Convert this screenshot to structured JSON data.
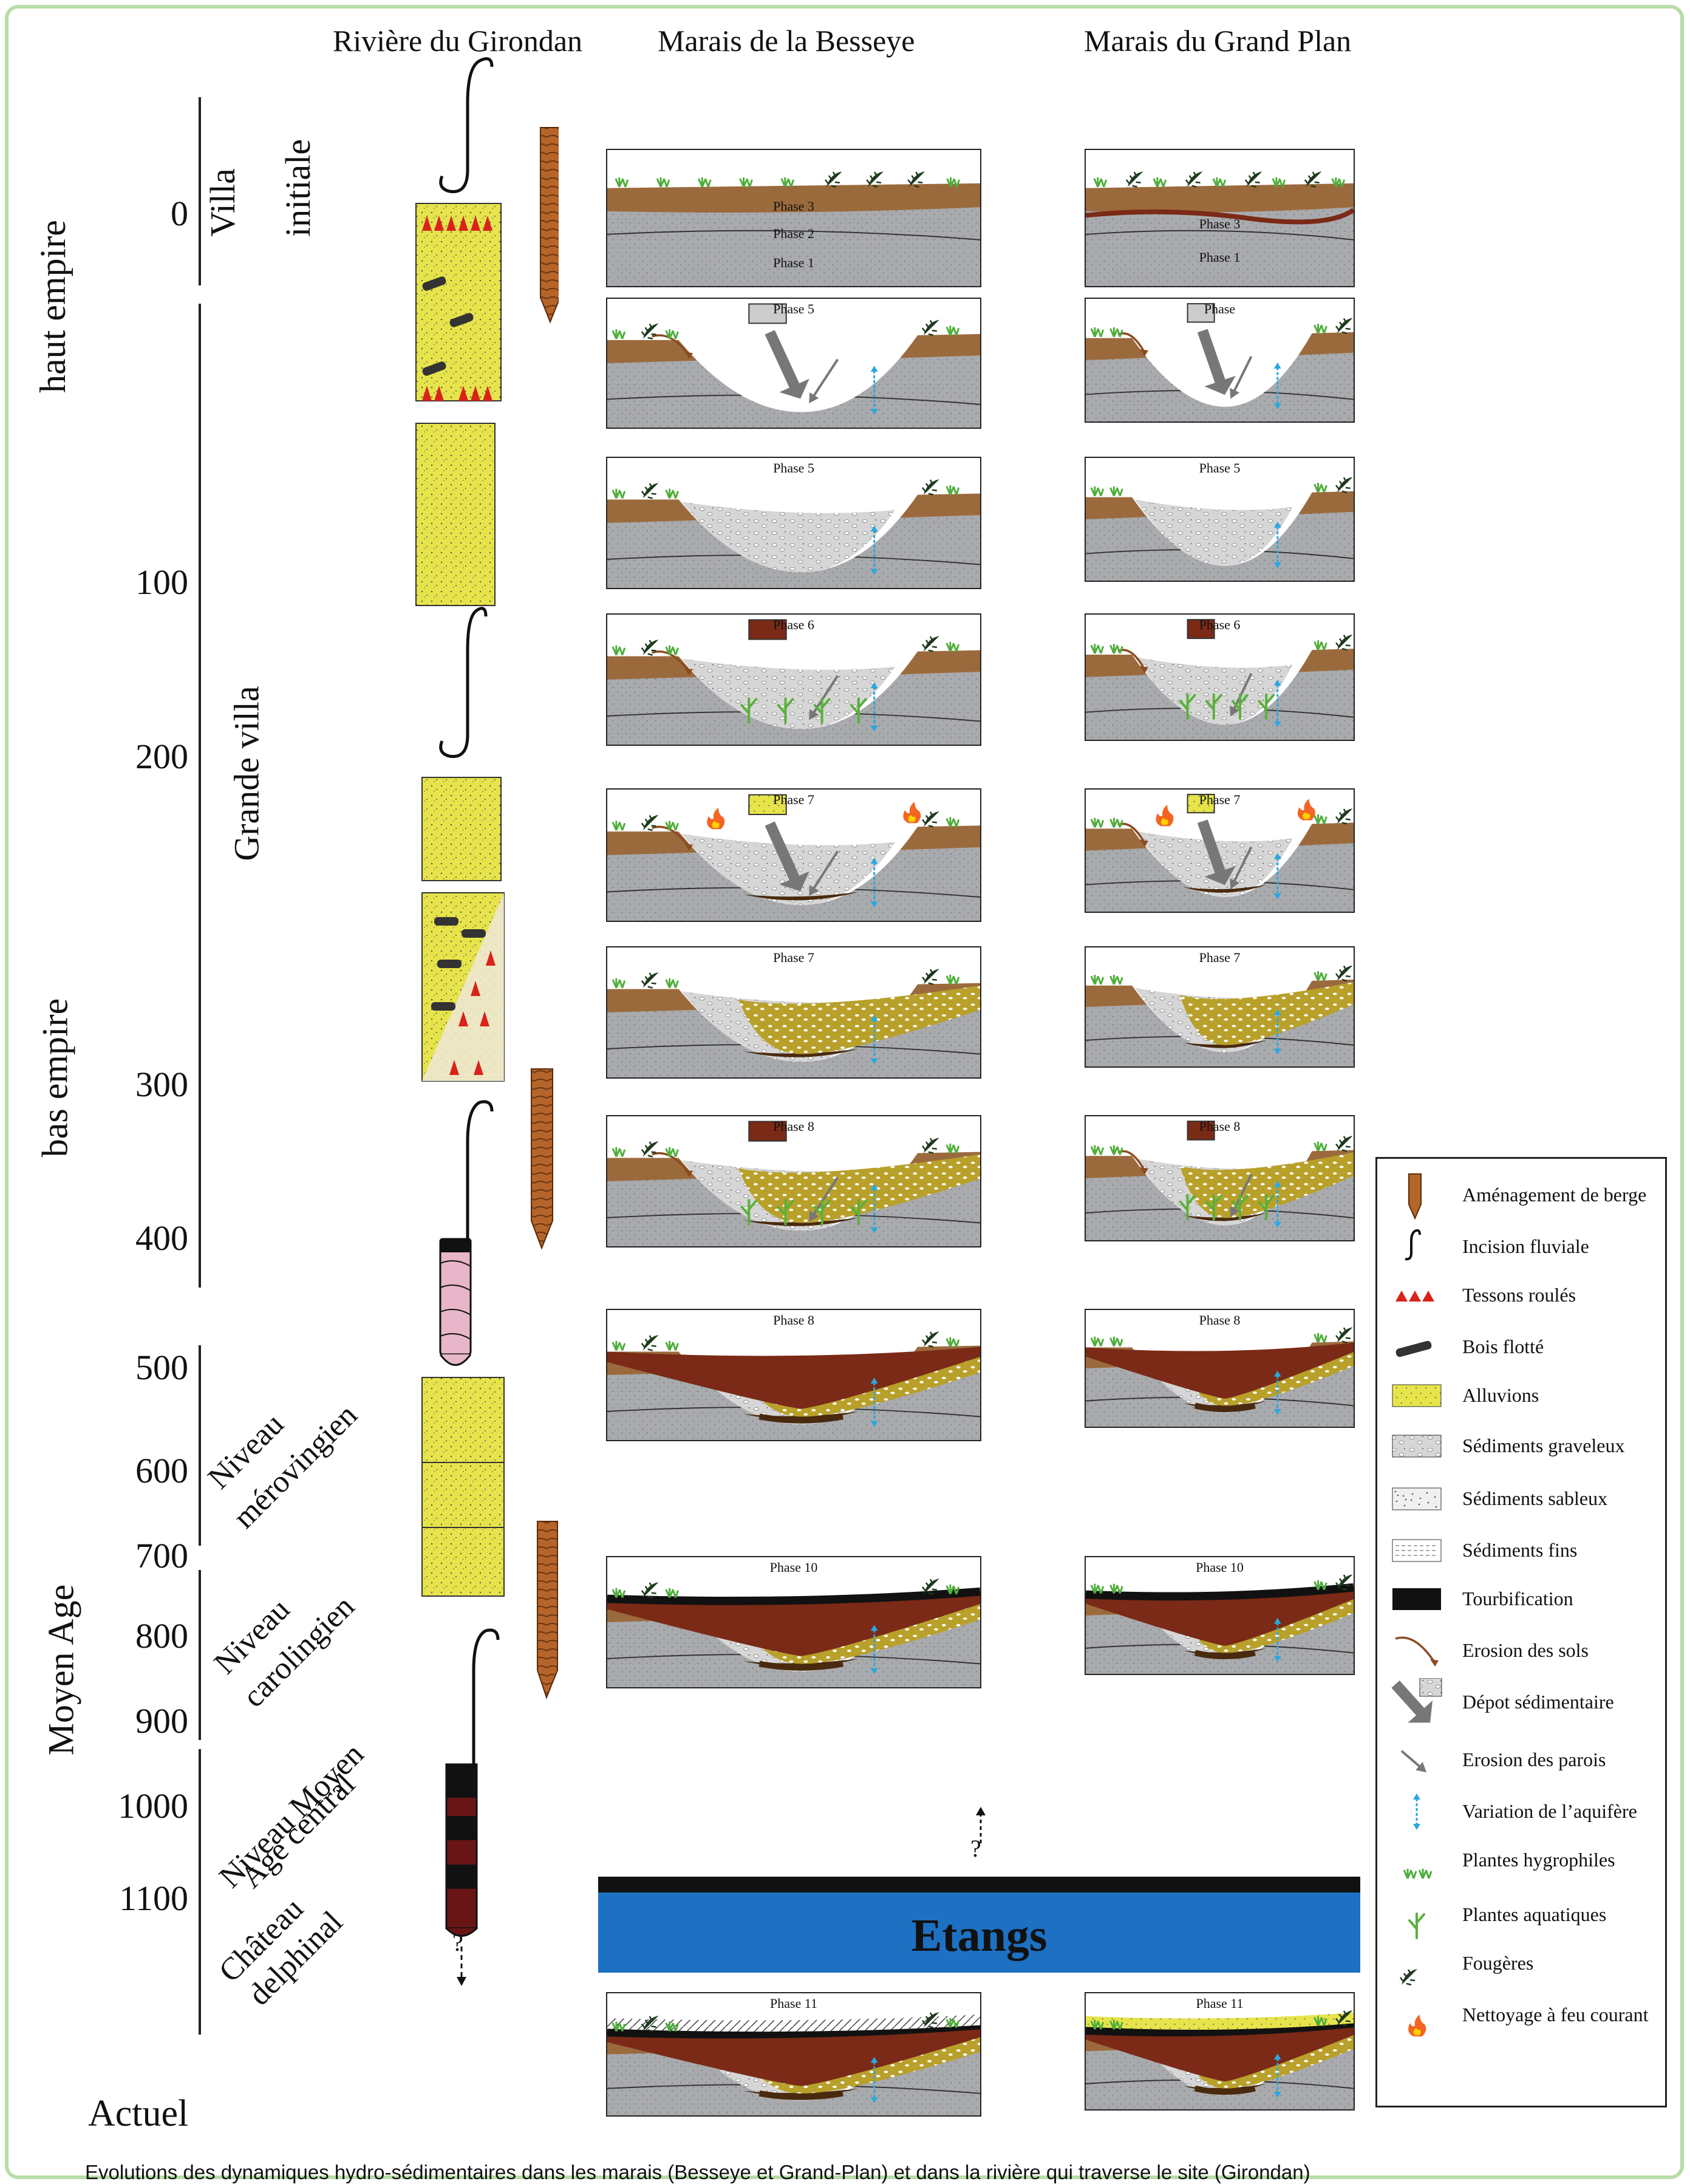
{
  "columns": {
    "girondan": "Rivière du Girondan",
    "besseye": "Marais de la Besseye",
    "grand_plan": "Marais du Grand Plan"
  },
  "timeline": {
    "years": [
      "0",
      "100",
      "200",
      "300",
      "400",
      "500",
      "600",
      "700",
      "800",
      "900",
      "1000",
      "1100"
    ],
    "actuel": "Actuel",
    "eras": [
      "haut empire",
      "bas empire",
      "Moyen Age"
    ],
    "periods": {
      "villa_initiale_1": "Villa",
      "villa_initiale_2": "initiale",
      "grande_villa": "Grande villa",
      "merovingien_1": "Niveau",
      "merovingien_2": "mérovingien",
      "carolingien_1": "Niveau",
      "carolingien_2": "carolingien",
      "moyen_age_1": "Niveau Moyen",
      "moyen_age_2": "Age central",
      "chateau_1": "Château",
      "chateau_2": "delphinal"
    }
  },
  "phases": {
    "b1": "Phase 3",
    "b1b": "Phase 2",
    "b1c": "Phase 1",
    "g1": "Phase 3",
    "g1b": "Phase 1",
    "b2": "Phase 5",
    "g2": "Phase",
    "b3": "Phase 5",
    "g3": "Phase 5",
    "b4": "Phase 6",
    "g4": "Phase 6",
    "b5": "Phase 7",
    "g5": "Phase 7",
    "b6": "Phase 7",
    "g6": "Phase 7",
    "b7": "Phase 8",
    "g7": "Phase 8",
    "b8": "Phase 8",
    "g8": "Phase 8",
    "b9": "Phase 10",
    "g9": "Phase 10",
    "b10": "Phase 11",
    "g10": "Phase 11"
  },
  "etangs": "Etangs",
  "question_mark": "?",
  "legend": [
    {
      "label": "Aménagement de berge",
      "icon": "bank-stake-icon"
    },
    {
      "label": "Incision fluviale",
      "icon": "hook-icon"
    },
    {
      "label": "Tessons roulés",
      "icon": "triangles-icon"
    },
    {
      "label": "Bois flotté",
      "icon": "log-icon"
    },
    {
      "label": "Alluvions",
      "icon": "alluvium-swatch"
    },
    {
      "label": "Sédiments graveleux",
      "icon": "gravel-swatch"
    },
    {
      "label": "Sédiments sableux",
      "icon": "sand-swatch"
    },
    {
      "label": "Sédiments fins",
      "icon": "fine-swatch"
    },
    {
      "label": "Tourbification",
      "icon": "peat-swatch"
    },
    {
      "label": "Erosion des sols",
      "icon": "curved-arrow-icon"
    },
    {
      "label": "Dépot sédimentaire",
      "icon": "big-arrow-icon"
    },
    {
      "label": "Erosion des parois",
      "icon": "small-arrow-icon"
    },
    {
      "label": "Variation de l’aquifère",
      "icon": "double-arrow-icon"
    },
    {
      "label": "Plantes hygrophiles",
      "icon": "grass-icon"
    },
    {
      "label": "Plantes aquatiques",
      "icon": "aquatic-plant-icon"
    },
    {
      "label": "Fougères",
      "icon": "fern-icon"
    },
    {
      "label": "Nettoyage à feu courant",
      "icon": "fire-icon"
    }
  ],
  "caption": "Evolutions des dynamiques hydro-sédimentaires dans les marais (Besseye et Grand-Plan) et dans la rivière qui traverse le site (Girondan)",
  "colors": {
    "brown": "#9b6a3c",
    "grey": "#a8aaad",
    "dark_peat": "#4a2a0e",
    "red_brown": "#7a2a16",
    "olive": "#b8a02a",
    "alluvium": "#e6e44a",
    "blue": "#1d70c2",
    "frame_green": "#b7dda8"
  }
}
